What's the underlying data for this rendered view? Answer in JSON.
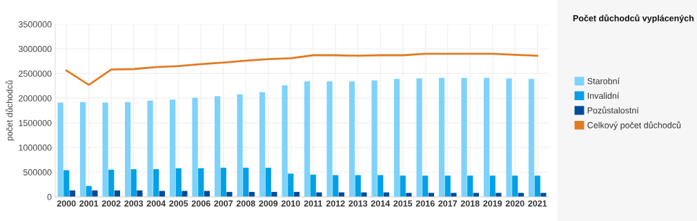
{
  "chart_data": {
    "type": "bar",
    "legend_title": "Počet důchodců vyplácených",
    "ylabel": "počet důchodců",
    "categories": [
      "2000",
      "2001",
      "2002",
      "2003",
      "2004",
      "2005",
      "2006",
      "2007",
      "2008",
      "2009",
      "2010",
      "2011",
      "2012",
      "2013",
      "2014",
      "2015",
      "2016",
      "2017",
      "2018",
      "2019",
      "2020",
      "2021"
    ],
    "series": [
      {
        "name": "Starobní",
        "color": "#7dd3fc",
        "values": [
          1910000,
          1920000,
          1910000,
          1920000,
          1950000,
          1970000,
          2010000,
          2040000,
          2080000,
          2120000,
          2260000,
          2340000,
          2340000,
          2340000,
          2360000,
          2390000,
          2400000,
          2410000,
          2410000,
          2410000,
          2400000,
          2390000
        ]
      },
      {
        "name": "Invalidní",
        "color": "#03a0e6",
        "values": [
          540000,
          220000,
          550000,
          560000,
          560000,
          580000,
          580000,
          590000,
          590000,
          590000,
          470000,
          450000,
          440000,
          440000,
          440000,
          430000,
          430000,
          430000,
          430000,
          430000,
          430000,
          430000
        ]
      },
      {
        "name": "Pozůstalostní",
        "color": "#034c9a",
        "values": [
          130000,
          130000,
          130000,
          130000,
          120000,
          120000,
          120000,
          100000,
          100000,
          100000,
          100000,
          90000,
          90000,
          90000,
          90000,
          80000,
          80000,
          80000,
          80000,
          80000,
          80000,
          80000
        ]
      },
      {
        "name": "Celkový počet důchodců",
        "type": "line",
        "color": "#e07b24",
        "values": [
          2560000,
          2270000,
          2580000,
          2590000,
          2630000,
          2650000,
          2690000,
          2720000,
          2760000,
          2790000,
          2810000,
          2870000,
          2870000,
          2860000,
          2870000,
          2870000,
          2900000,
          2900000,
          2900000,
          2900000,
          2880000,
          2860000
        ]
      }
    ],
    "ylim": [
      0,
      3500000
    ],
    "yticks": [
      0,
      500000,
      1000000,
      1500000,
      2000000,
      2500000,
      3000000,
      3500000
    ],
    "grid": true,
    "legend": "right",
    "marker": "none"
  }
}
